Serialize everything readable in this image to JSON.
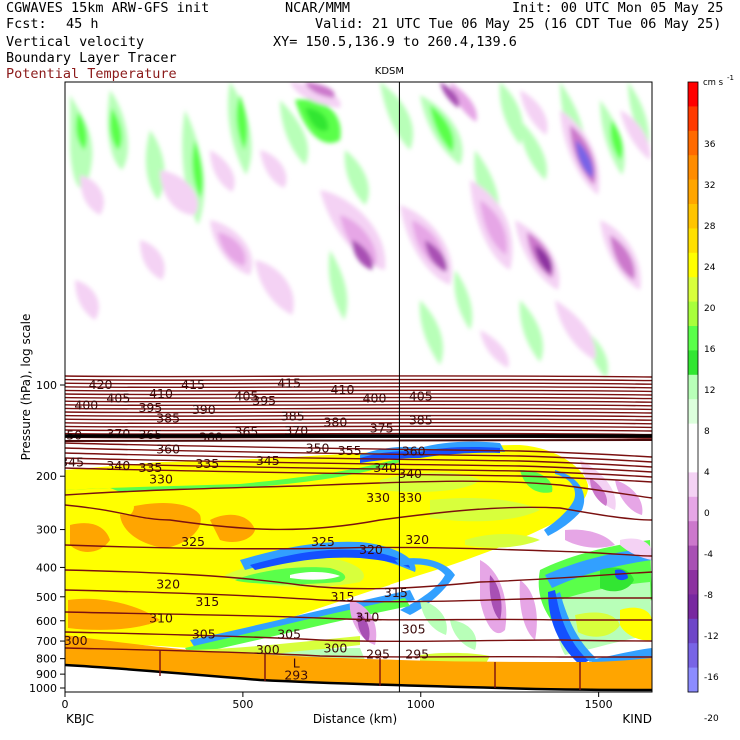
{
  "header": {
    "model": "CGWAVES 15km ARW-GFS init",
    "fcst_label": "Fcst:",
    "fcst_value": "45 h",
    "org": "NCAR/MMM",
    "init": "Init: 00 UTC Mon 05 May 25",
    "valid": "Valid: 21 UTC Tue 06 May 25 (16 CDT Tue 06 May 25)",
    "xy": "XY= 150.5,136.9 to 260.4,139.6",
    "field1": "Vertical velocity",
    "field2": "Boundary Layer Tracer",
    "field3": "Potential Temperature"
  },
  "chart_data": {
    "type": "heatmap",
    "xlabel": "Distance (km)",
    "ylabel": "Pressure (hPa), log scale",
    "xlim": [
      0,
      1650
    ],
    "x_ticks": [
      0,
      500,
      1000,
      1500
    ],
    "y_ticks": [
      100,
      200,
      300,
      400,
      500,
      600,
      700,
      800,
      900,
      1000
    ],
    "y_scale": "log",
    "left_station": "KBJC",
    "right_station": "KIND",
    "marker_station": "KDSM",
    "marker_x": 940,
    "colorbar": {
      "unit": "cm s",
      "unit_exp": "-1",
      "labels": [
        36,
        32,
        28,
        24,
        20,
        16,
        12,
        8,
        4,
        0,
        -4,
        -8,
        -12,
        -16,
        -20
      ],
      "colors": [
        "#ff0000",
        "#ff3a00",
        "#ff6a00",
        "#ff8c00",
        "#ffa500",
        "#ffc400",
        "#ffe000",
        "#ffff00",
        "#d8ff3c",
        "#a8ff3c",
        "#5aff4a",
        "#32e632",
        "#b8ffb8",
        "#dcffdc",
        "#ffffff",
        "#ffffff",
        "#f4d2f4",
        "#e6a6e6",
        "#cc78cc",
        "#a850b4",
        "#8c32a0",
        "#7828a0",
        "#6e46c8",
        "#7864e6",
        "#8c8cff"
      ]
    },
    "theta_labels": [
      {
        "v": "420",
        "x": 100,
        "p": 100
      },
      {
        "v": "415",
        "x": 360,
        "p": 100
      },
      {
        "v": "415",
        "x": 630,
        "p": 99
      },
      {
        "v": "410",
        "x": 270,
        "p": 107
      },
      {
        "v": "405",
        "x": 510,
        "p": 109
      },
      {
        "v": "410",
        "x": 780,
        "p": 104
      },
      {
        "v": "400",
        "x": 60,
        "p": 117
      },
      {
        "v": "405",
        "x": 150,
        "p": 111
      },
      {
        "v": "395",
        "x": 240,
        "p": 119
      },
      {
        "v": "390",
        "x": 390,
        "p": 121
      },
      {
        "v": "395",
        "x": 560,
        "p": 113
      },
      {
        "v": "400",
        "x": 870,
        "p": 111
      },
      {
        "v": "405",
        "x": 1000,
        "p": 109
      },
      {
        "v": "385",
        "x": 290,
        "p": 129
      },
      {
        "v": "385",
        "x": 640,
        "p": 127
      },
      {
        "v": "380",
        "x": 760,
        "p": 133
      },
      {
        "v": "375",
        "x": 890,
        "p": 139
      },
      {
        "v": "385",
        "x": 1000,
        "p": 131
      },
      {
        "v": "365",
        "x": 510,
        "p": 143
      },
      {
        "v": "370",
        "x": 650,
        "p": 142
      },
      {
        "v": "350",
        "x": 15,
        "p": 147
      },
      {
        "v": "370",
        "x": 150,
        "p": 145
      },
      {
        "v": "365",
        "x": 240,
        "p": 146
      },
      {
        "v": "360",
        "x": 410,
        "p": 149
      },
      {
        "v": "360",
        "x": 290,
        "p": 163
      },
      {
        "v": "355",
        "x": 800,
        "p": 165
      },
      {
        "v": "350",
        "x": 710,
        "p": 162
      },
      {
        "v": "360",
        "x": 980,
        "p": 166
      },
      {
        "v": "345",
        "x": 20,
        "p": 180
      },
      {
        "v": "345",
        "x": 570,
        "p": 178
      },
      {
        "v": "340",
        "x": 150,
        "p": 185
      },
      {
        "v": "335",
        "x": 240,
        "p": 188
      },
      {
        "v": "335",
        "x": 400,
        "p": 182
      },
      {
        "v": "340",
        "x": 970,
        "p": 197
      },
      {
        "v": "340",
        "x": 900,
        "p": 188
      },
      {
        "v": "330",
        "x": 270,
        "p": 205
      },
      {
        "v": "330",
        "x": 880,
        "p": 236
      },
      {
        "v": "330",
        "x": 970,
        "p": 236
      },
      {
        "v": "325",
        "x": 360,
        "p": 330
      },
      {
        "v": "325",
        "x": 725,
        "p": 330
      },
      {
        "v": "320",
        "x": 290,
        "p": 455
      },
      {
        "v": "320",
        "x": 860,
        "p": 350
      },
      {
        "v": "320",
        "x": 990,
        "p": 325
      },
      {
        "v": "315",
        "x": 400,
        "p": 520
      },
      {
        "v": "315",
        "x": 780,
        "p": 500
      },
      {
        "v": "315",
        "x": 930,
        "p": 485
      },
      {
        "v": "310",
        "x": 270,
        "p": 590
      },
      {
        "v": "310",
        "x": 850,
        "p": 585
      },
      {
        "v": "305",
        "x": 390,
        "p": 665
      },
      {
        "v": "305",
        "x": 630,
        "p": 665
      },
      {
        "v": "305",
        "x": 980,
        "p": 640
      },
      {
        "v": "300",
        "x": 30,
        "p": 700
      },
      {
        "v": "300",
        "x": 570,
        "p": 750
      },
      {
        "v": "300",
        "x": 760,
        "p": 740
      },
      {
        "v": "295",
        "x": 880,
        "p": 775
      },
      {
        "v": "295",
        "x": 990,
        "p": 775
      },
      {
        "v": "293",
        "x": 650,
        "p": 910
      },
      {
        "v": "L",
        "x": 650,
        "p": 830
      }
    ]
  }
}
